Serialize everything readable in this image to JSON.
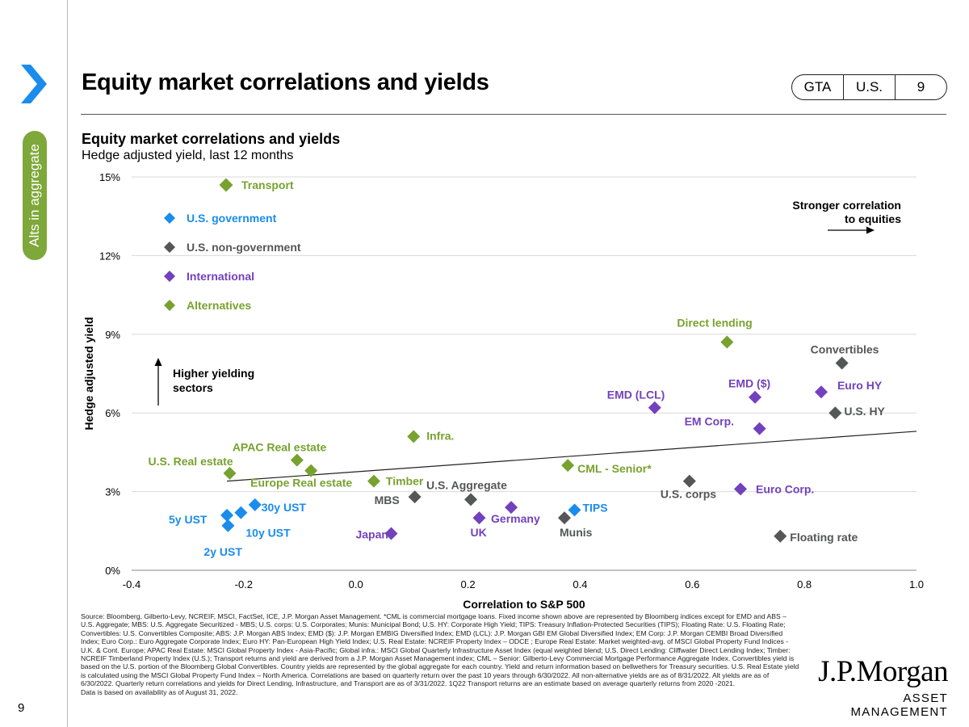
{
  "page": {
    "number": "9",
    "side_tab": "Alts in aggregate",
    "title": "Equity market correlations and yields",
    "badges": [
      "GTA",
      "U.S.",
      "9"
    ]
  },
  "colors": {
    "us_government": "#1a8ceb",
    "us_non_government": "#555657",
    "international": "#7341bd",
    "alternatives": "#78a22f",
    "side_tab": "#7ea83a",
    "chevron": "#1a8ceb"
  },
  "icons": [
    "chevron-right-icon",
    "diamond-marker-icon",
    "arrow-right-icon",
    "arrow-up-icon"
  ],
  "chart_data": {
    "type": "scatter",
    "title": "Equity market correlations and yields",
    "subtitle": "Hedge adjusted yield, last 12 months",
    "xlabel": "Correlation to S&P 500",
    "ylabel": "Hedge adjusted yield",
    "xlim": [
      -0.4,
      1.0
    ],
    "ylim": [
      0,
      15
    ],
    "x_ticks": [
      "-0.4",
      "-0.2",
      "0.0",
      "0.2",
      "0.4",
      "0.6",
      "0.8",
      "1.0"
    ],
    "y_ticks": [
      "0%",
      "3%",
      "6%",
      "9%",
      "12%",
      "15%"
    ],
    "grid": "horizontal",
    "legend": [
      {
        "name": "Transport",
        "group": "alternatives"
      },
      {
        "name": "U.S. government",
        "group": "us_government"
      },
      {
        "name": "U.S. non-government",
        "group": "us_non_government"
      },
      {
        "name": "International",
        "group": "international"
      },
      {
        "name": "Alternatives",
        "group": "alternatives"
      }
    ],
    "annotations": {
      "right": "Stronger correlation\nto equities",
      "up": "Higher yielding\nsectors"
    },
    "trendline": {
      "x": [
        -0.23,
        1.0
      ],
      "y": [
        3.4,
        5.3
      ]
    },
    "points": [
      {
        "label": "5y UST",
        "group": "us_government",
        "x": -0.23,
        "y": 2.1
      },
      {
        "label": "2y UST",
        "group": "us_government",
        "x": -0.228,
        "y": 1.7
      },
      {
        "label": "10y UST",
        "group": "us_government",
        "x": -0.205,
        "y": 2.2
      },
      {
        "label": "30y UST",
        "group": "us_government",
        "x": -0.18,
        "y": 2.5
      },
      {
        "label": "TIPS",
        "group": "us_government",
        "x": 0.39,
        "y": 2.3
      },
      {
        "label": "MBS",
        "group": "us_non_government",
        "x": 0.105,
        "y": 2.8
      },
      {
        "label": "U.S. Aggregate",
        "group": "us_non_government",
        "x": 0.205,
        "y": 2.7
      },
      {
        "label": "Munis",
        "group": "us_non_government",
        "x": 0.372,
        "y": 2.0
      },
      {
        "label": "U.S. corps",
        "group": "us_non_government",
        "x": 0.595,
        "y": 3.4
      },
      {
        "label": "Floating rate",
        "group": "us_non_government",
        "x": 0.757,
        "y": 1.3
      },
      {
        "label": "U.S. HY",
        "group": "us_non_government",
        "x": 0.855,
        "y": 6.0
      },
      {
        "label": "Convertibles",
        "group": "us_non_government",
        "x": 0.867,
        "y": 7.9
      },
      {
        "label": "Japan",
        "group": "international",
        "x": 0.063,
        "y": 1.4
      },
      {
        "label": "UK",
        "group": "international",
        "x": 0.22,
        "y": 2.0
      },
      {
        "label": "Germany",
        "group": "international",
        "x": 0.277,
        "y": 2.4
      },
      {
        "label": "EMD (LCL)",
        "group": "international",
        "x": 0.533,
        "y": 6.2
      },
      {
        "label": "EMD ($)",
        "group": "international",
        "x": 0.712,
        "y": 6.6
      },
      {
        "label": "EM Corp.",
        "group": "international",
        "x": 0.72,
        "y": 5.4
      },
      {
        "label": "Euro Corp.",
        "group": "international",
        "x": 0.686,
        "y": 3.1
      },
      {
        "label": "Euro HY",
        "group": "international",
        "x": 0.83,
        "y": 6.8
      },
      {
        "label": "Transport",
        "group": "alternatives",
        "x": -0.232,
        "y": 14.7
      },
      {
        "label": "U.S. Real estate",
        "group": "alternatives",
        "x": -0.225,
        "y": 3.7
      },
      {
        "label": "APAC Real estate",
        "group": "alternatives",
        "x": -0.105,
        "y": 4.2
      },
      {
        "label": "Europe Real estate",
        "group": "alternatives",
        "x": -0.08,
        "y": 3.8
      },
      {
        "label": "Timber",
        "group": "alternatives",
        "x": 0.032,
        "y": 3.4
      },
      {
        "label": "Infra.",
        "group": "alternatives",
        "x": 0.103,
        "y": 5.1
      },
      {
        "label": "CML - Senior*",
        "group": "alternatives",
        "x": 0.378,
        "y": 4.0
      },
      {
        "label": "Direct lending",
        "group": "alternatives",
        "x": 0.662,
        "y": 8.7
      }
    ]
  },
  "footnote": "Source: Bloomberg, Gilberto-Levy, NCREIF, MSCI, FactSet, ICE, J.P. Morgan Asset Management. *CML is commercial mortgage loans. Fixed income shown above are represented by Bloomberg indices except for EMD and ABS – U.S. Aggregate; MBS: U.S. Aggregate Securitized - MBS; U.S. corps: U.S. Corporates; Munis: Municipal Bond; U.S. HY: Corporate High Yield; TIPS: Treasury Inflation-Protected Securities (TIPS); Floating Rate: U.S. Floating Rate; Convertibles: U.S. Convertibles Composite; ABS: J.P. Morgan ABS Index; EMD ($): J.P. Morgan EMBIG Diversified Index; EMD (LCL): J.P. Morgan GBI EM Global Diversified Index; EM Corp: J.P. Morgan CEMBI Broad Diversified Index; Euro Corp.: Euro Aggregate Corporate Index; Euro HY: Pan-European High Yield Index; U.S. Real Estate: NCREIF Property Index – ODCE ; Europe Real Estate: Market weighted-avg. of MSCI Global Property Fund Indices - U.K. & Cont. Europe; APAC Real Estate: MSCI Global Property Index - Asia-Pacific; Global infra.: MSCI Global Quarterly Infrastructure Asset Index (equal weighted blend; U.S. Direct Lending: Cliffwater Direct Lending Index; Timber: NCREIF Timberland Property Index (U.S.); Transport returns and yield are derived from a J.P. Morgan Asset Management index; CML – Senior: Gilberto-Levy Commercial Mortgage Performance Aggregate Index. Convertibles yield is based on the U.S. portion of the Bloomberg Global Convertibles. Country yields are represented by the global aggregate for each country. Yield and return information based on bellwethers for Treasury securities. U.S. Real Estate yield is calculated using the MSCI Global Property Fund Index – North America. Correlations are based on quarterly return over the past 10 years through 6/30/2022. All non-alternative yields are as of 8/31/2022. Alt yields are as of 6/30/2022. Quarterly return correlations and yields for Direct Lending, Infrastructure, and Transport are as of 3/31/2022. 1Q22 Transport returns are an estimate based on average quarterly returns from 2020 -2021.",
  "footnote_2": "Data is based on availability as of August 31, 2022.",
  "logo": {
    "line1": "J.P.Morgan",
    "line2": "ASSET MANAGEMENT"
  }
}
